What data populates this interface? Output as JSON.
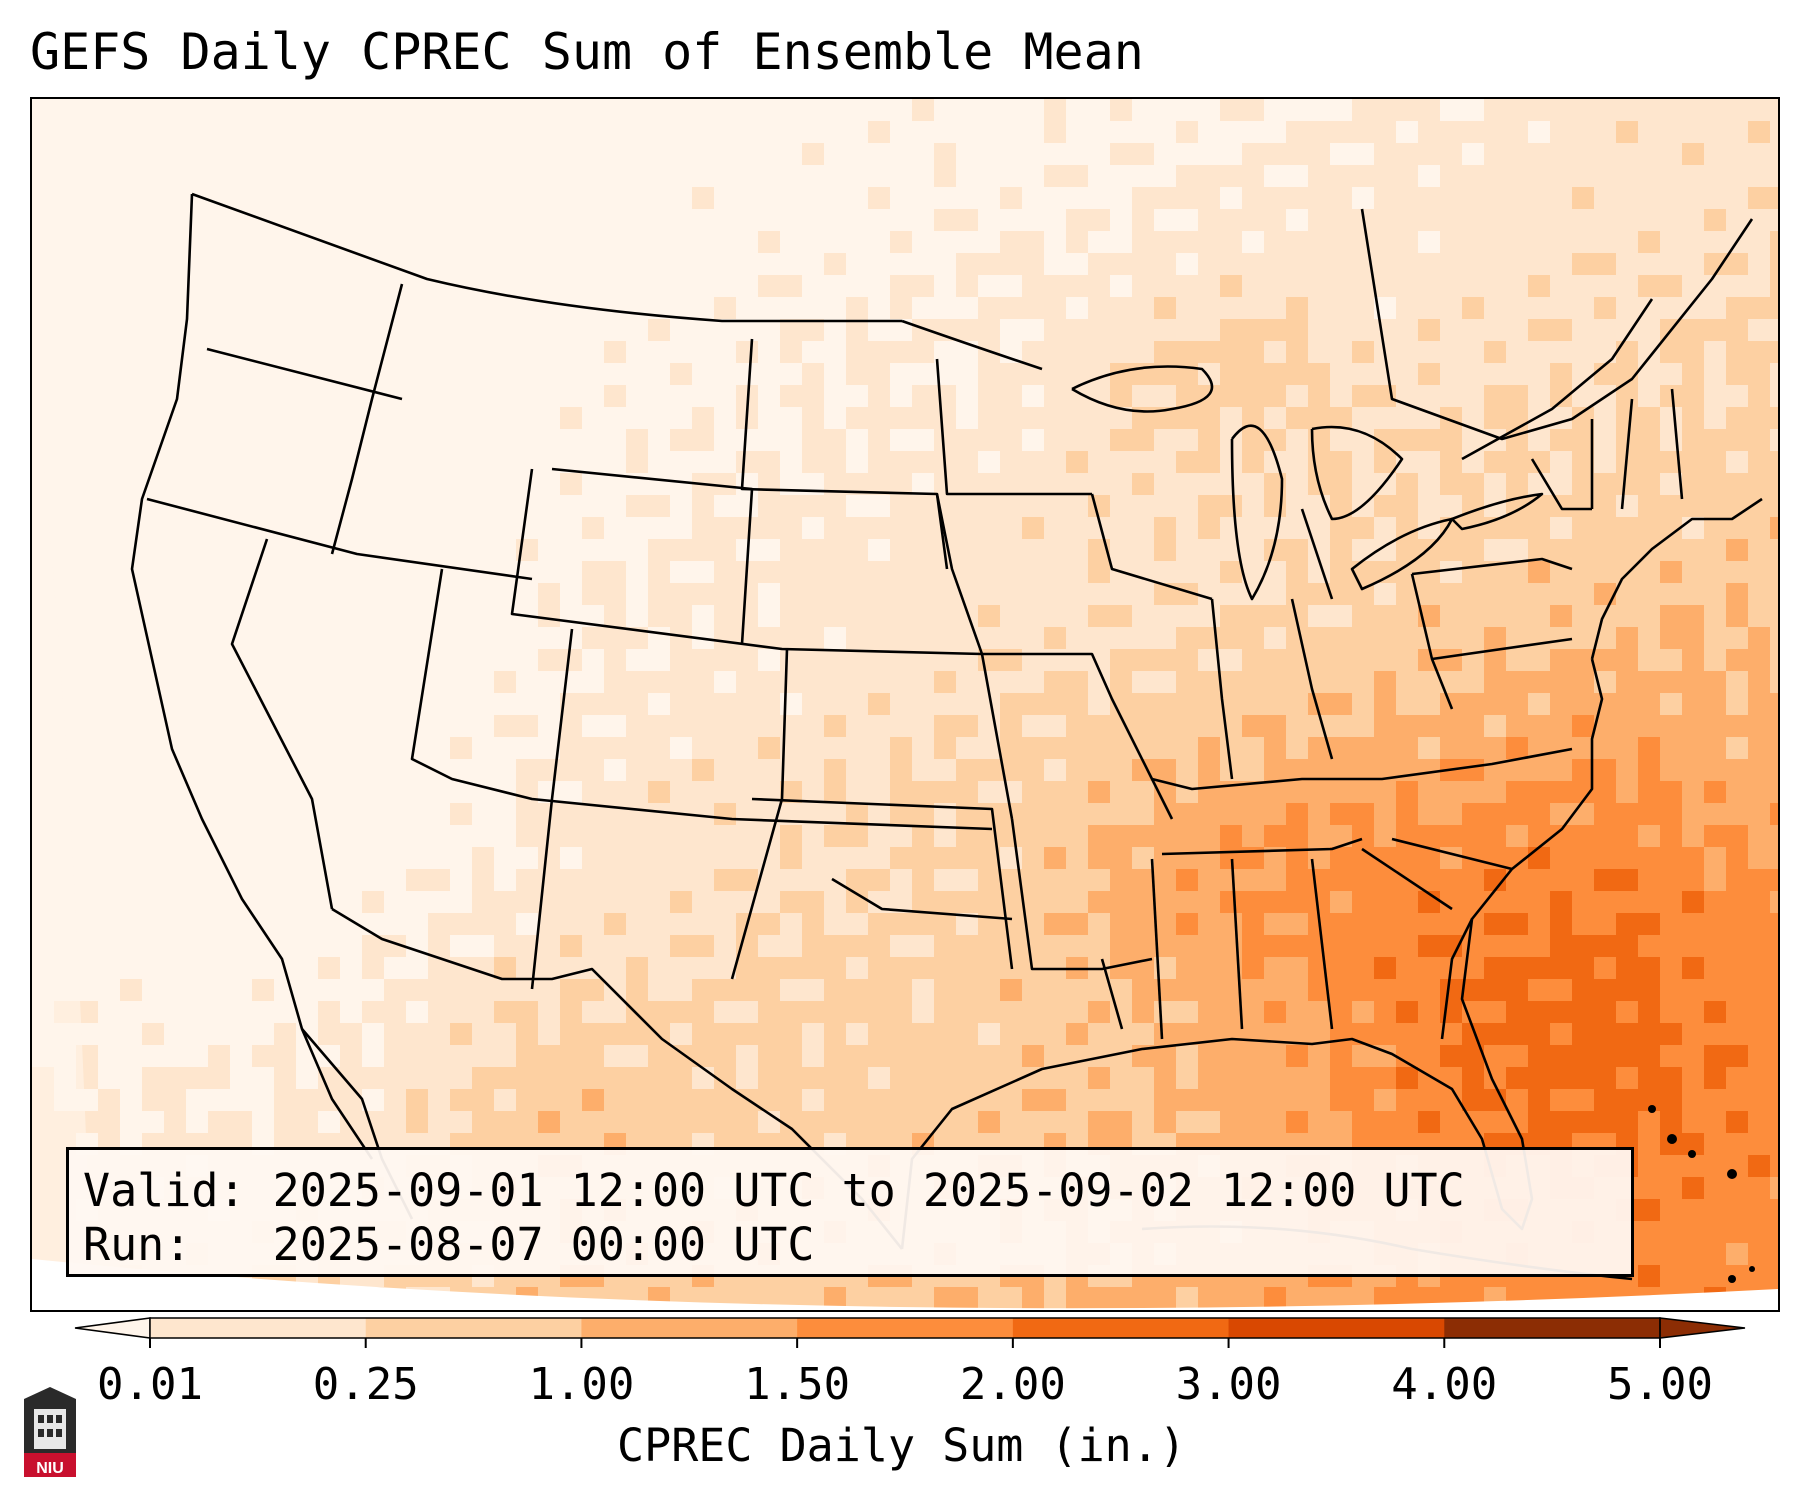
{
  "title": "GEFS Daily CPREC Sum of Ensemble Mean",
  "info": {
    "valid_line": "Valid: 2025-09-01 12:00 UTC to 2025-09-02 12:00 UTC",
    "run_line": "Run:   2025-08-07 00:00 UTC"
  },
  "colorbar": {
    "label": "CPREC Daily Sum (in.)",
    "ticks": [
      "0.01",
      "0.25",
      "1.00",
      "1.50",
      "2.00",
      "3.00",
      "4.00",
      "5.00"
    ],
    "colors": [
      "#fff5eb",
      "#fee6ce",
      "#fdd0a2",
      "#fdae6b",
      "#fd8d3c",
      "#f16913",
      "#d94801",
      "#8c2d04"
    ]
  },
  "logo": {
    "text": "NIU"
  }
}
